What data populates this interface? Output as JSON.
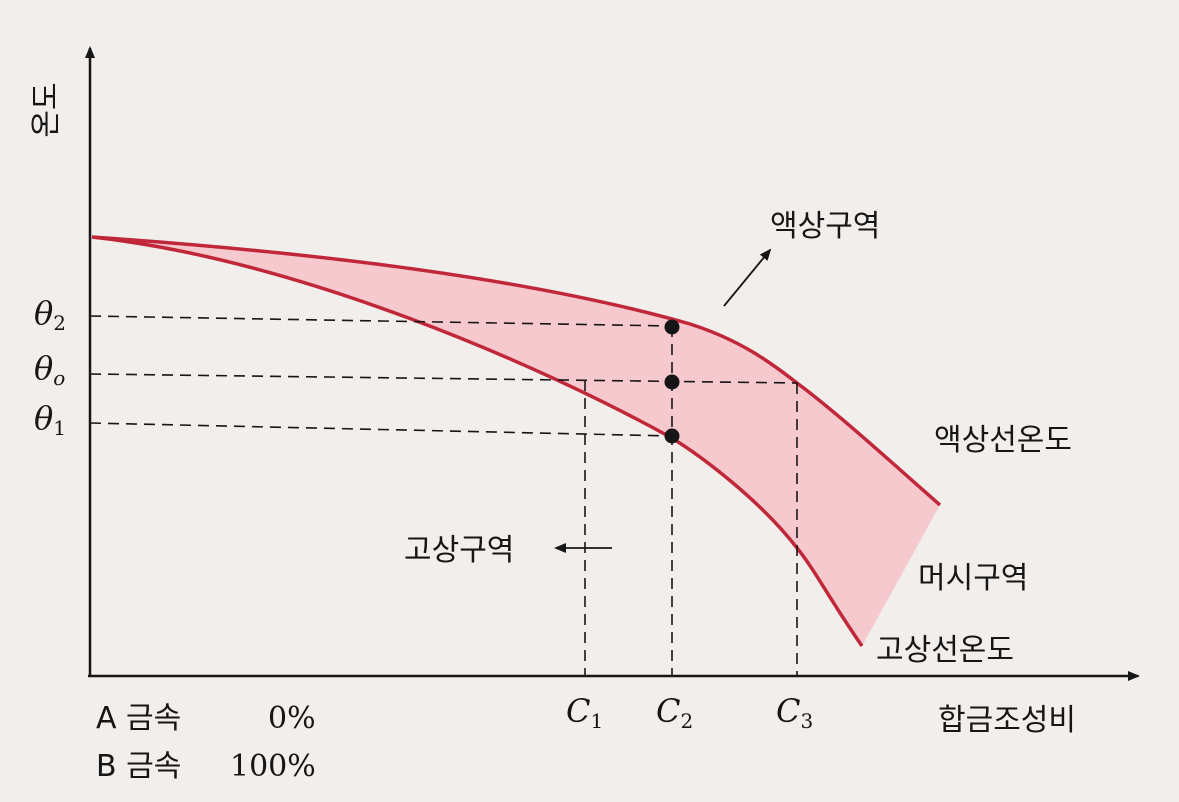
{
  "axes": {
    "y_label": "온도",
    "x_label": "합금조성비"
  },
  "composition": {
    "a_label": "A 금속",
    "a_value": "0%",
    "b_label": "B 금속",
    "b_value": "100%"
  },
  "temperatures": {
    "theta2": {
      "symbol": "θ",
      "sub": "2"
    },
    "theta0": {
      "symbol": "θ",
      "sub": "o"
    },
    "theta1": {
      "symbol": "θ",
      "sub": "1"
    }
  },
  "compositions": {
    "c1": {
      "symbol": "C",
      "sub": "1"
    },
    "c2": {
      "symbol": "C",
      "sub": "2"
    },
    "c3": {
      "symbol": "C",
      "sub": "3"
    }
  },
  "regions": {
    "liquid": "액상구역",
    "solid": "고상구역",
    "mushy": "머시구역"
  },
  "curves": {
    "liquidus": "액상선온도",
    "solidus": "고상선온도"
  },
  "colors": {
    "curve": "#c0283a",
    "fill": "#f6c9cf",
    "ink": "#161616"
  }
}
